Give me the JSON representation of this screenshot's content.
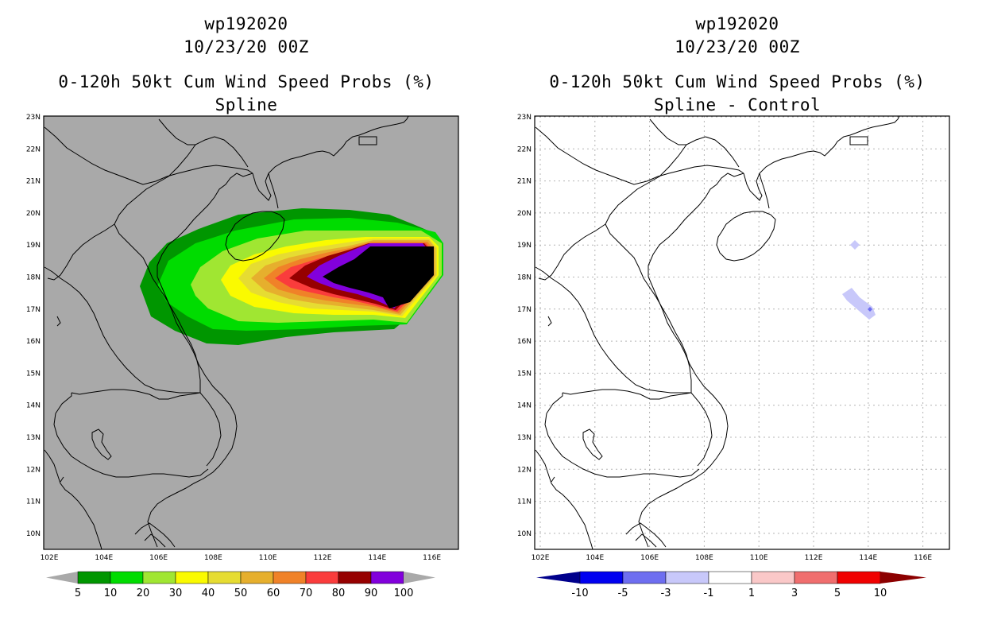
{
  "left_panel": {
    "storm_id": "wp192020",
    "datetime": "10/23/20 00Z",
    "product": "0-120h 50kt Cum Wind Speed Probs (%)",
    "subtitle": "Spline",
    "background_color": "#a9a9a9",
    "colorbar": {
      "labels": [
        "5",
        "10",
        "20",
        "30",
        "40",
        "50",
        "60",
        "70",
        "80",
        "90",
        "100"
      ],
      "colors": [
        "#009600",
        "#00dc00",
        "#a0e632",
        "#fafa00",
        "#e6dc32",
        "#e6af2d",
        "#f08228",
        "#fa3c3c",
        "#960000",
        "#8200dc"
      ],
      "end_color": "#a9a9a9"
    }
  },
  "right_panel": {
    "storm_id": "wp192020",
    "datetime": "10/23/20 00Z",
    "product": "0-120h 50kt Cum Wind Speed Probs (%)",
    "subtitle": "Spline - Control",
    "background_color": "#ffffff",
    "colorbar": {
      "labels": [
        "-10",
        "-5",
        "-3",
        "-1",
        "1",
        "3",
        "5",
        "10"
      ],
      "colors": [
        "#0000f0",
        "#6e6ef0",
        "#c8c8fa",
        "#ffffff",
        "#fac8c8",
        "#f06e6e",
        "#f00000"
      ],
      "end_colors": [
        "#00008c",
        "#8c0000"
      ]
    }
  },
  "axes": {
    "lon_labels": [
      "102E",
      "104E",
      "106E",
      "108E",
      "110E",
      "112E",
      "114E",
      "116E"
    ],
    "lat_labels": [
      "23N",
      "22N",
      "21N",
      "20N",
      "19N",
      "18N",
      "17N",
      "16N",
      "15N",
      "14N",
      "13N",
      "12N",
      "11N",
      "10N"
    ]
  }
}
